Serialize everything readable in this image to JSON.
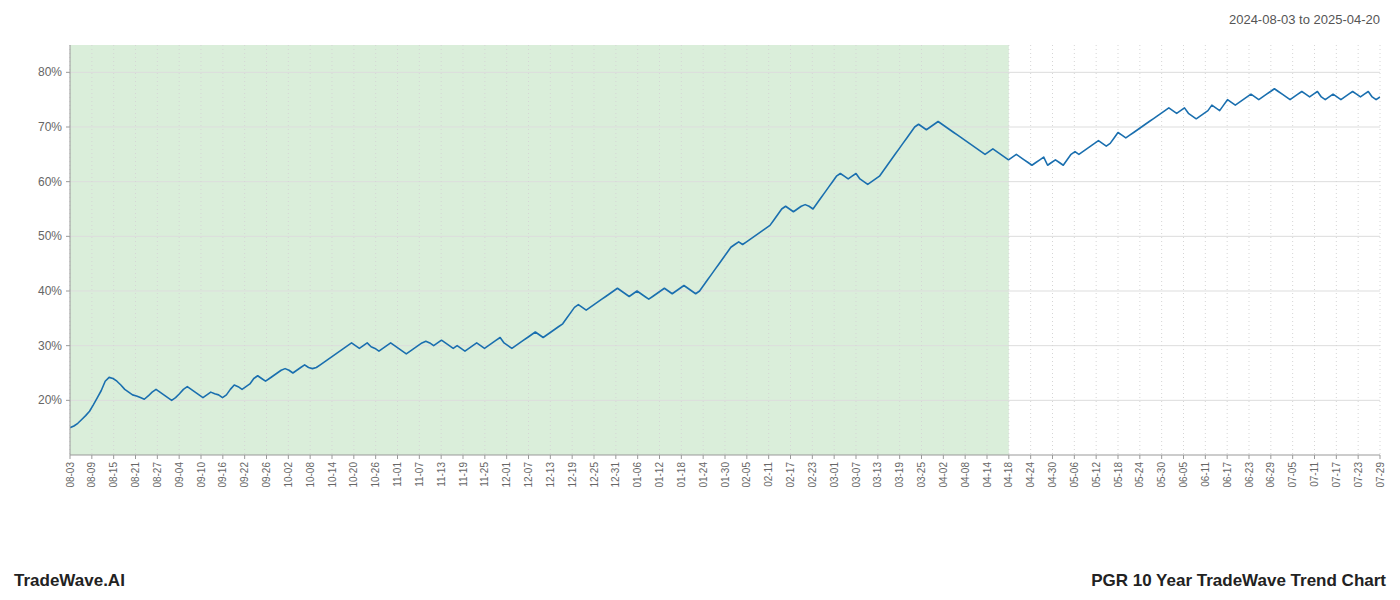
{
  "chart_data": {
    "type": "line",
    "title": "PGR 10 Year TradeWave Trend Chart",
    "subtitle": "2024-08-03 to 2025-04-20",
    "annotations": [
      "TradeWave.AI"
    ],
    "color": "#1a6faf",
    "grid": true,
    "shaded_region": {
      "x0": 0,
      "x1": 240.08333333333334,
      "color": "#daeeda"
    },
    "xlim": [
      0,
      335
    ],
    "xticks": [
      {
        "value": 0,
        "label": "08-03"
      },
      {
        "value": 5.583333333333333,
        "label": "08-09"
      },
      {
        "value": 11.166666666666666,
        "label": "08-15"
      },
      {
        "value": 16.75,
        "label": "08-21"
      },
      {
        "value": 22.333333333333332,
        "label": "08-27"
      },
      {
        "value": 27.916666666666664,
        "label": "09-04"
      },
      {
        "value": 33.5,
        "label": "09-10"
      },
      {
        "value": 39.083333333333336,
        "label": "09-16"
      },
      {
        "value": 44.666666666666664,
        "label": "09-22"
      },
      {
        "value": 50.25,
        "label": "09-26"
      },
      {
        "value": 55.833333333333336,
        "label": "10-02"
      },
      {
        "value": 61.416666666666664,
        "label": "10-08"
      },
      {
        "value": 67,
        "label": "10-14"
      },
      {
        "value": 72.58333333333333,
        "label": "10-20"
      },
      {
        "value": 78.16666666666667,
        "label": "10-26"
      },
      {
        "value": 83.75,
        "label": "11-01"
      },
      {
        "value": 89.33333333333333,
        "label": "11-07"
      },
      {
        "value": 94.91666666666667,
        "label": "11-13"
      },
      {
        "value": 100.5,
        "label": "11-19"
      },
      {
        "value": 106.08333333333333,
        "label": "11-25"
      },
      {
        "value": 111.66666666666667,
        "label": "12-01"
      },
      {
        "value": 117.25,
        "label": "12-07"
      },
      {
        "value": 122.83333333333333,
        "label": "12-13"
      },
      {
        "value": 128.41666666666666,
        "label": "12-19"
      },
      {
        "value": 134,
        "label": "12-25"
      },
      {
        "value": 139.58333333333334,
        "label": "12-31"
      },
      {
        "value": 145.16666666666666,
        "label": "01-06"
      },
      {
        "value": 150.75,
        "label": "01-12"
      },
      {
        "value": 156.33333333333334,
        "label": "01-18"
      },
      {
        "value": 161.91666666666666,
        "label": "01-24"
      },
      {
        "value": 167.5,
        "label": "01-30"
      },
      {
        "value": 173.08333333333334,
        "label": "02-05"
      },
      {
        "value": 178.66666666666666,
        "label": "02-11"
      },
      {
        "value": 184.25,
        "label": "02-17"
      },
      {
        "value": 189.83333333333334,
        "label": "02-23"
      },
      {
        "value": 195.41666666666666,
        "label": "03-01"
      },
      {
        "value": 201,
        "label": "03-07"
      },
      {
        "value": 206.58333333333334,
        "label": "03-13"
      },
      {
        "value": 212.16666666666666,
        "label": "03-19"
      },
      {
        "value": 217.75,
        "label": "03-25"
      },
      {
        "value": 223.33333333333334,
        "label": "04-02"
      },
      {
        "value": 228.91666666666666,
        "label": "04-08"
      },
      {
        "value": 234.5,
        "label": "04-14"
      },
      {
        "value": 240.08333333333334,
        "label": "04-18"
      },
      {
        "value": 245.66666666666666,
        "label": "04-24"
      },
      {
        "value": 251.25,
        "label": "04-30"
      },
      {
        "value": 256.8333333333333,
        "label": "05-06"
      },
      {
        "value": 262.4166666666667,
        "label": "05-12"
      },
      {
        "value": 268,
        "label": "05-18"
      },
      {
        "value": 273.5833333333333,
        "label": "05-24"
      },
      {
        "value": 279.1666666666667,
        "label": "05-30"
      },
      {
        "value": 284.75,
        "label": "06-05"
      },
      {
        "value": 290.3333333333333,
        "label": "06-11"
      },
      {
        "value": 295.9166666666667,
        "label": "06-17"
      },
      {
        "value": 301.5,
        "label": "06-23"
      },
      {
        "value": 307.0833333333333,
        "label": "06-29"
      },
      {
        "value": 312.6666666666667,
        "label": "07-05"
      },
      {
        "value": 318.25,
        "label": "07-11"
      },
      {
        "value": 323.8333333333333,
        "label": "07-17"
      },
      {
        "value": 329.4166666666667,
        "label": "07-23"
      },
      {
        "value": 335,
        "label": "07-29"
      }
    ],
    "ylim": [
      10,
      85
    ],
    "yticks": [
      {
        "value": 20,
        "label": "20%"
      },
      {
        "value": 30,
        "label": "30%"
      },
      {
        "value": 40,
        "label": "40%"
      },
      {
        "value": 50,
        "label": "50%"
      },
      {
        "value": 60,
        "label": "60%"
      },
      {
        "value": 70,
        "label": "70%"
      },
      {
        "value": 80,
        "label": "80%"
      }
    ],
    "values": [
      15.0,
      15.3,
      15.8,
      16.5,
      17.2,
      18.0,
      19.2,
      20.5,
      21.8,
      23.5,
      24.2,
      24.0,
      23.5,
      22.8,
      22.0,
      21.5,
      21.0,
      20.8,
      20.5,
      20.2,
      20.8,
      21.5,
      22.0,
      21.5,
      21.0,
      20.5,
      20.0,
      20.5,
      21.2,
      22.0,
      22.5,
      22.0,
      21.5,
      21.0,
      20.5,
      21.0,
      21.5,
      21.2,
      21.0,
      20.5,
      21.0,
      22.0,
      22.8,
      22.5,
      22.0,
      22.5,
      23.0,
      24.0,
      24.5,
      24.0,
      23.5,
      24.0,
      24.5,
      25.0,
      25.5,
      25.8,
      25.5,
      25.0,
      25.5,
      26.0,
      26.5,
      26.0,
      25.8,
      26.0,
      26.5,
      27.0,
      27.5,
      28.0,
      28.5,
      29.0,
      29.5,
      30.0,
      30.5,
      30.0,
      29.5,
      30.0,
      30.5,
      29.8,
      29.5,
      29.0,
      29.5,
      30.0,
      30.5,
      30.0,
      29.5,
      29.0,
      28.5,
      29.0,
      29.5,
      30.0,
      30.5,
      30.8,
      30.5,
      30.0,
      30.5,
      31.0,
      30.5,
      30.0,
      29.5,
      30.0,
      29.5,
      29.0,
      29.5,
      30.0,
      30.5,
      30.0,
      29.5,
      30.0,
      30.5,
      31.0,
      31.5,
      30.5,
      30.0,
      29.5,
      30.0,
      30.5,
      31.0,
      31.5,
      32.0,
      32.5,
      32.0,
      31.5,
      32.0,
      32.5,
      33.0,
      33.5,
      34.0,
      35.0,
      36.0,
      37.0,
      37.5,
      37.0,
      36.5,
      37.0,
      37.5,
      38.0,
      38.5,
      39.0,
      39.5,
      40.0,
      40.5,
      40.0,
      39.5,
      39.0,
      39.5,
      40.0,
      39.5,
      39.0,
      38.5,
      39.0,
      39.5,
      40.0,
      40.5,
      40.0,
      39.5,
      40.0,
      40.5,
      41.0,
      40.5,
      40.0,
      39.5,
      40.0,
      41.0,
      42.0,
      43.0,
      44.0,
      45.0,
      46.0,
      47.0,
      48.0,
      48.5,
      49.0,
      48.5,
      49.0,
      49.5,
      50.0,
      50.5,
      51.0,
      51.5,
      52.0,
      53.0,
      54.0,
      55.0,
      55.5,
      55.0,
      54.5,
      55.0,
      55.5,
      55.8,
      55.5,
      55.0,
      56.0,
      57.0,
      58.0,
      59.0,
      60.0,
      61.0,
      61.5,
      61.0,
      60.5,
      61.0,
      61.5,
      60.5,
      60.0,
      59.5,
      60.0,
      60.5,
      61.0,
      62.0,
      63.0,
      64.0,
      65.0,
      66.0,
      67.0,
      68.0,
      69.0,
      70.0,
      70.5,
      70.0,
      69.5,
      70.0,
      70.5,
      71.0,
      70.5,
      70.0,
      69.5,
      69.0,
      68.5,
      68.0,
      67.5,
      67.0,
      66.5,
      66.0,
      65.5,
      65.0,
      65.5,
      66.0,
      65.5,
      65.0,
      64.5,
      64.0,
      64.5,
      65.0,
      64.5,
      64.0,
      63.5,
      63.0,
      63.5,
      64.0,
      64.5,
      63.0,
      63.5,
      64.0,
      63.5,
      63.0,
      64.0,
      65.0,
      65.5,
      65.0,
      65.5,
      66.0,
      66.5,
      67.0,
      67.5,
      67.0,
      66.5,
      67.0,
      68.0,
      69.0,
      68.5,
      68.0,
      68.5,
      69.0,
      69.5,
      70.0,
      70.5,
      71.0,
      71.5,
      72.0,
      72.5,
      73.0,
      73.5,
      73.0,
      72.5,
      73.0,
      73.5,
      72.5,
      72.0,
      71.5,
      72.0,
      72.5,
      73.0,
      74.0,
      73.5,
      73.0,
      74.0,
      75.0,
      74.5,
      74.0,
      74.5,
      75.0,
      75.5,
      76.0,
      75.5,
      75.0,
      75.5,
      76.0,
      76.5,
      77.0,
      76.5,
      76.0,
      75.5,
      75.0,
      75.5,
      76.0,
      76.5,
      76.0,
      75.5,
      76.0,
      76.5,
      75.5,
      75.0,
      75.5,
      76.0,
      75.5,
      75.0,
      75.5,
      76.0,
      76.5,
      76.0,
      75.5,
      76.0,
      76.5,
      75.5,
      75.0,
      75.5
    ]
  }
}
